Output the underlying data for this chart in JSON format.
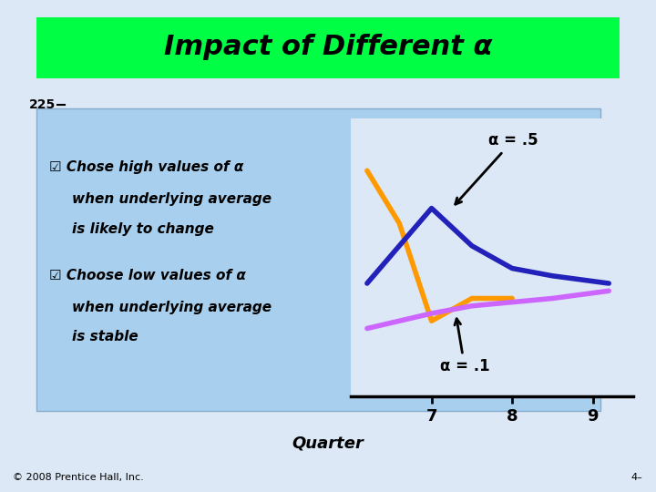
{
  "title": "Impact of Different α",
  "title_bg_color": "#00ff44",
  "title_text_color": "#000000",
  "bg_color": "#dce8f5",
  "box_color": "#a8d0ee",
  "y_label_225": "225",
  "bullet1_line1": "☑ Chose high values of α",
  "bullet1_line2": "when underlying average",
  "bullet1_line3": "is likely to change",
  "bullet2_line1": "☑ Choose low values of α",
  "bullet2_line2": "when underlying average",
  "bullet2_line3": "is stable",
  "annotation_high": "α = .5",
  "annotation_low": "α = .1",
  "xlabel": "Quarter",
  "x_ticks": [
    7,
    8,
    9
  ],
  "footer_left": "© 2008 Prentice Hall, Inc.",
  "footer_right": "4–",
  "line_actual_x": [
    6.2,
    6.6,
    7.0,
    7.5,
    8.0
  ],
  "line_actual_y": [
    225,
    218,
    205,
    208,
    208
  ],
  "line_high_x": [
    6.2,
    7.0,
    7.5,
    8.0,
    8.5,
    9.2
  ],
  "line_high_y": [
    210,
    220,
    215,
    212,
    211,
    210
  ],
  "line_low_x": [
    6.2,
    7.0,
    7.5,
    8.0,
    8.5,
    9.2
  ],
  "line_low_y": [
    204,
    206,
    207,
    207.5,
    208,
    209
  ],
  "color_actual": "#ff9900",
  "color_high": "#2222bb",
  "color_low": "#cc66ff",
  "lw_actual": 4,
  "lw_high": 4,
  "lw_low": 4
}
